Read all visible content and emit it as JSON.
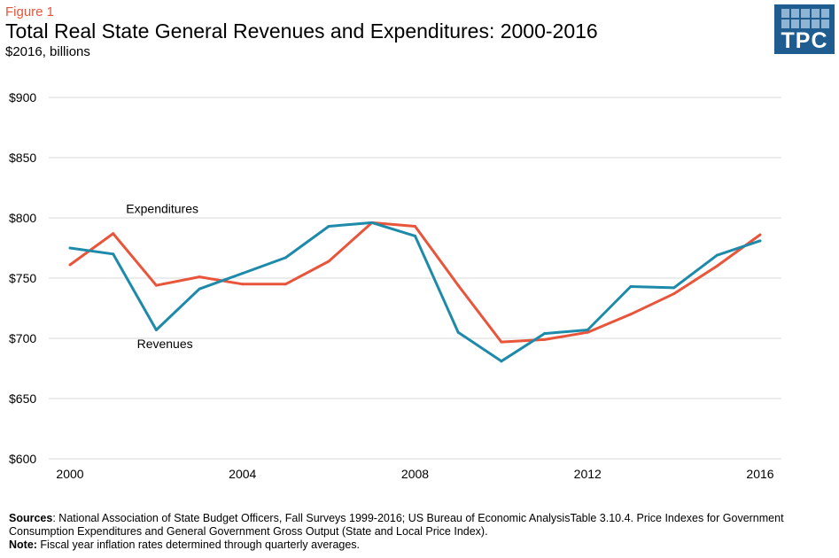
{
  "header": {
    "figure_label": "Figure 1",
    "title": "Total Real State General Revenues and Expenditures: 2000-2016",
    "subtitle": "$2016, billions"
  },
  "logo": {
    "text": "TPC",
    "color": "#1f5c8f",
    "accent": "#8fb4d3"
  },
  "chart_data": {
    "type": "line",
    "x": [
      2000,
      2001,
      2002,
      2003,
      2004,
      2005,
      2006,
      2007,
      2008,
      2009,
      2010,
      2011,
      2012,
      2013,
      2014,
      2015,
      2016
    ],
    "series": [
      {
        "name": "Expenditures",
        "color": "#e8553a",
        "values": [
          761,
          787,
          744,
          751,
          745,
          745,
          764,
          796,
          793,
          744,
          697,
          699,
          705,
          720,
          737,
          760,
          786
        ]
      },
      {
        "name": "Revenues",
        "color": "#1e8aaa",
        "values": [
          775,
          770,
          707,
          741,
          754,
          767,
          793,
          796,
          785,
          705,
          681,
          704,
          707,
          743,
          742,
          769,
          781
        ]
      }
    ],
    "ylim": [
      600,
      900
    ],
    "yticks": [
      {
        "value": 900,
        "label": "$900"
      },
      {
        "value": 850,
        "label": "$850"
      },
      {
        "value": 800,
        "label": "$800"
      },
      {
        "value": 750,
        "label": "$750"
      },
      {
        "value": 700,
        "label": "$700"
      },
      {
        "value": 650,
        "label": "$650"
      },
      {
        "value": 600,
        "label": "$600"
      }
    ],
    "xticks": [
      {
        "value": 2000,
        "label": "2000"
      },
      {
        "value": 2004,
        "label": "2004"
      },
      {
        "value": 2008,
        "label": "2008"
      },
      {
        "value": 2012,
        "label": "2012"
      },
      {
        "value": 2016,
        "label": "2016"
      }
    ],
    "annotations": [
      {
        "text": "Expenditures",
        "series": "Expenditures"
      },
      {
        "text": "Revenues",
        "series": "Revenues"
      }
    ],
    "grid": true,
    "legend": "none"
  },
  "footer": {
    "sources_label": "Sources",
    "sources_text": ": National Association of State Budget Officers, Fall Surveys 1999-2016;  US Bureau of Economic AnalysisTable 3.10.4. Price Indexes for Government Consumption Expenditures and General Government Gross Output (State and Local Price Index).",
    "note_label": "Note:",
    "note_text": " Fiscal year inflation rates determined through quarterly averages."
  }
}
